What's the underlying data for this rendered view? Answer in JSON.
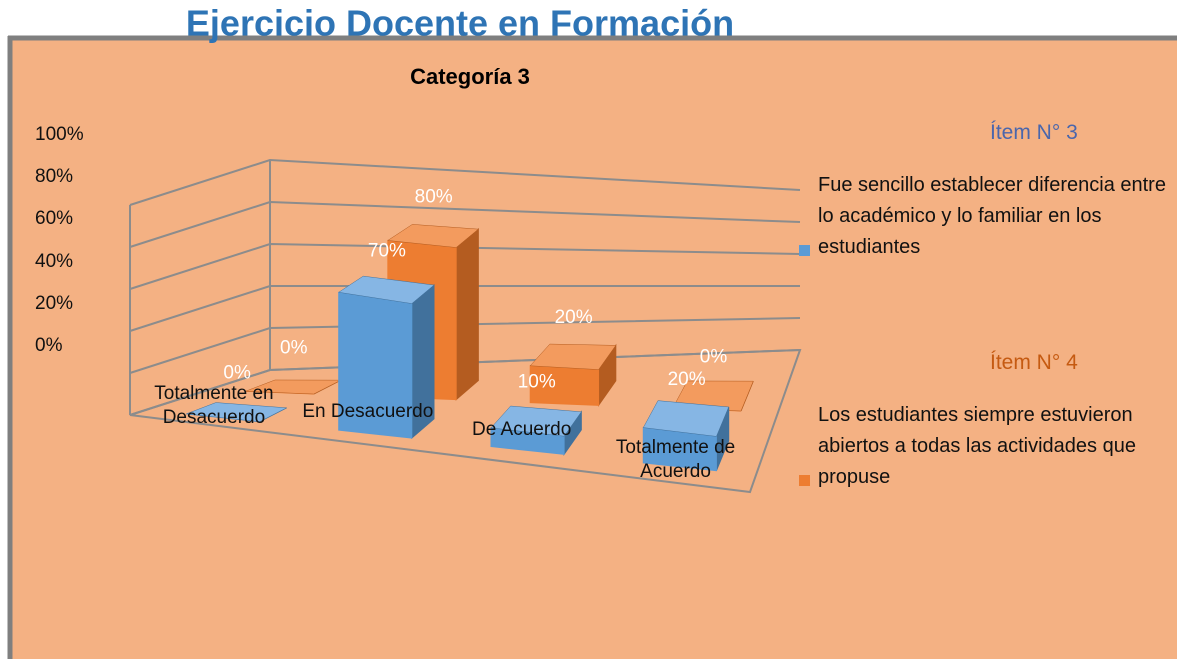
{
  "chart_data": {
    "type": "bar3d",
    "title": "Ejercicio Docente en Formación",
    "subtitle": "Categoría 3",
    "categories": [
      "Totalmente en Desacuerdo",
      "En Desacuerdo",
      "De Acuerdo",
      "Totalmente de Acuerdo"
    ],
    "series": [
      {
        "item": "Ítem N° 3",
        "name": "Fue sencillo establecer diferencia entre lo académico y lo familiar en los estudiantes",
        "color": "#5b9bd5",
        "values": [
          0,
          70,
          10,
          20
        ],
        "value_labels": [
          "0%",
          "70%",
          "10%",
          "20%"
        ]
      },
      {
        "item": "Ítem N° 4",
        "name": "Los estudiantes siempre estuvieron abiertos a todas las actividades que propuse",
        "color": "#ed7d31",
        "values": [
          0,
          80,
          20,
          0
        ],
        "value_labels": [
          "0%",
          "80%",
          "20%",
          "0%"
        ]
      }
    ],
    "ylim": [
      0,
      100
    ],
    "yticks": [
      {
        "value": 0,
        "label": "0%"
      },
      {
        "value": 20,
        "label": "20%"
      },
      {
        "value": 40,
        "label": "40%"
      },
      {
        "value": 60,
        "label": "60%"
      },
      {
        "value": 80,
        "label": "80%"
      },
      {
        "value": 100,
        "label": "100%"
      }
    ],
    "grid": true
  }
}
